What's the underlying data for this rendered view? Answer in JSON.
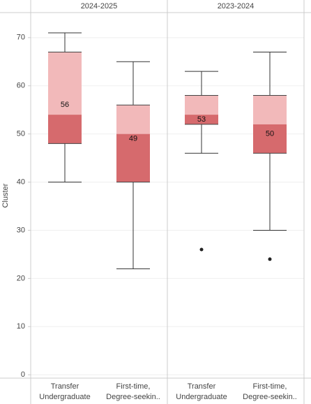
{
  "chart_data": {
    "type": "box",
    "y_label": "Cluster",
    "ylim": [
      -0.7,
      75.2
    ],
    "yticks": [
      0,
      10,
      20,
      30,
      40,
      50,
      60,
      70
    ],
    "grid": true,
    "upper_color": "#f2b9ba",
    "lower_color": "#d66a6d",
    "panels": [
      {
        "name": "2024-2025",
        "boxes": [
          {
            "category": [
              "Transfer",
              "Undergraduate"
            ],
            "whisker_low": 40,
            "q1": 48,
            "median": 54,
            "q3": 67,
            "whisker_high": 71,
            "outliers": [],
            "label": 56
          },
          {
            "category": [
              "First-time,",
              "Degree-seekin.."
            ],
            "whisker_low": 22,
            "q1": 40,
            "median": 50,
            "q3": 56,
            "whisker_high": 65,
            "outliers": [],
            "label": 49
          }
        ]
      },
      {
        "name": "2023-2024",
        "boxes": [
          {
            "category": [
              "Transfer",
              "Undergraduate"
            ],
            "whisker_low": 46,
            "q1": 52,
            "median": 54,
            "q3": 58,
            "whisker_high": 63,
            "outliers": [
              26
            ],
            "label": 53
          },
          {
            "category": [
              "First-time,",
              "Degree-seekin.."
            ],
            "whisker_low": 30,
            "q1": 46,
            "median": 52,
            "q3": 58,
            "whisker_high": 67,
            "outliers": [
              24
            ],
            "label": 50
          }
        ]
      }
    ]
  }
}
